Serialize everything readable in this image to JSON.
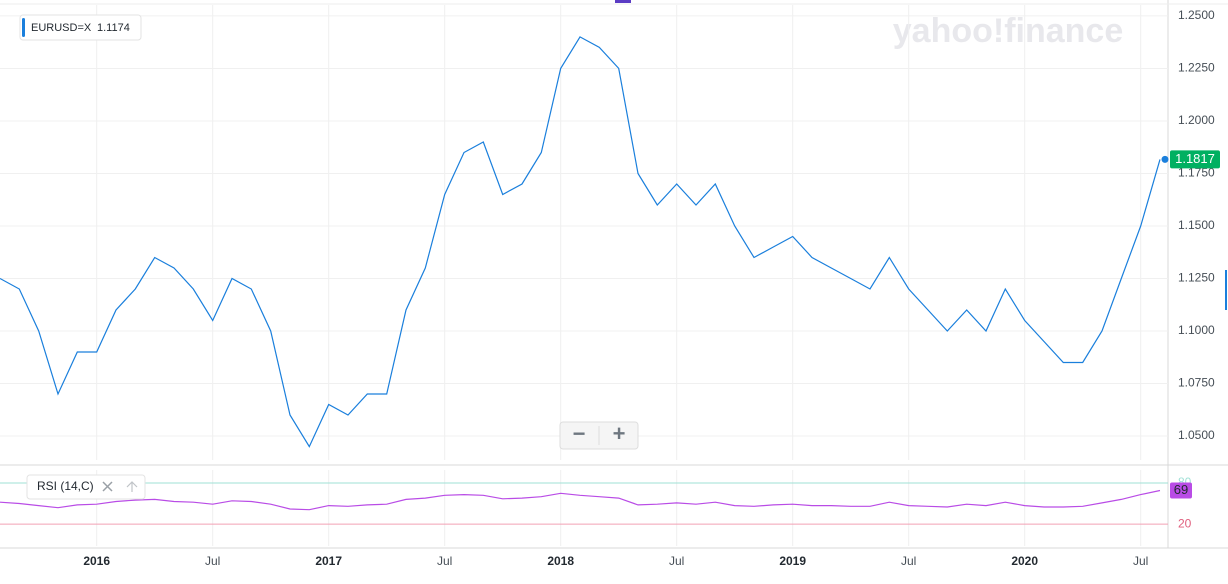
{
  "chart_data": {
    "type": "line",
    "brand": "yahoo!finance",
    "zoom_out": "−",
    "zoom_in": "+",
    "legend_value": 1.1174,
    "x": [
      "2015-08",
      "2015-09",
      "2015-10",
      "2015-11",
      "2015-12",
      "2016-01",
      "2016-02",
      "2016-03",
      "2016-04",
      "2016-05",
      "2016-06",
      "2016-07",
      "2016-08",
      "2016-09",
      "2016-10",
      "2016-11",
      "2016-12",
      "2017-01",
      "2017-02",
      "2017-03",
      "2017-04",
      "2017-05",
      "2017-06",
      "2017-07",
      "2017-08",
      "2017-09",
      "2017-10",
      "2017-11",
      "2017-12",
      "2018-01",
      "2018-02",
      "2018-03",
      "2018-04",
      "2018-05",
      "2018-06",
      "2018-07",
      "2018-08",
      "2018-09",
      "2018-10",
      "2018-11",
      "2018-12",
      "2019-01",
      "2019-02",
      "2019-03",
      "2019-04",
      "2019-05",
      "2019-06",
      "2019-07",
      "2019-08",
      "2019-09",
      "2019-10",
      "2019-11",
      "2019-12",
      "2020-01",
      "2020-02",
      "2020-03",
      "2020-04",
      "2020-05",
      "2020-06",
      "2020-07",
      "2020-08"
    ],
    "series": [
      {
        "name": "EURUSD=X",
        "color": "#1a7fdc",
        "values": [
          1.125,
          1.12,
          1.1,
          1.07,
          1.09,
          1.09,
          1.11,
          1.12,
          1.135,
          1.13,
          1.12,
          1.105,
          1.125,
          1.12,
          1.1,
          1.06,
          1.045,
          1.065,
          1.06,
          1.07,
          1.07,
          1.11,
          1.13,
          1.165,
          1.185,
          1.19,
          1.165,
          1.17,
          1.185,
          1.225,
          1.24,
          1.235,
          1.225,
          1.175,
          1.16,
          1.17,
          1.16,
          1.17,
          1.15,
          1.135,
          1.14,
          1.145,
          1.135,
          1.13,
          1.125,
          1.12,
          1.135,
          1.12,
          1.11,
          1.1,
          1.11,
          1.1,
          1.12,
          1.105,
          1.095,
          1.085,
          1.085,
          1.1,
          1.125,
          1.15,
          1.1817
        ]
      },
      {
        "name": "RSI (14,C)",
        "color": "#b94ce6",
        "axis": "y2",
        "values": [
          52,
          50,
          47,
          44,
          48,
          49,
          53,
          55,
          56,
          53,
          52,
          49,
          54,
          53,
          49,
          42,
          41,
          47,
          46,
          48,
          49,
          56,
          58,
          62,
          63,
          62,
          57,
          58,
          60,
          65,
          62,
          60,
          58,
          48,
          49,
          51,
          49,
          52,
          47,
          46,
          48,
          49,
          47,
          47,
          46,
          46,
          52,
          47,
          46,
          45,
          49,
          47,
          52,
          47,
          45,
          45,
          46,
          51,
          56,
          63,
          69
        ]
      }
    ],
    "xlim": [
      "2015-08",
      "2020-08"
    ],
    "xticks": [
      {
        "value": "2016-01",
        "label": "2016"
      },
      {
        "value": "2016-07",
        "label": "Jul"
      },
      {
        "value": "2017-01",
        "label": "2017"
      },
      {
        "value": "2017-07",
        "label": "Jul"
      },
      {
        "value": "2018-01",
        "label": "2018"
      },
      {
        "value": "2018-07",
        "label": "Jul"
      },
      {
        "value": "2019-01",
        "label": "2019"
      },
      {
        "value": "2019-07",
        "label": "Jul"
      },
      {
        "value": "2020-01",
        "label": "2020"
      },
      {
        "value": "2020-07",
        "label": "Jul"
      }
    ],
    "ylim": [
      1.0386,
      1.2552
    ],
    "yticks": [
      {
        "value": 1.05,
        "label": "1.0500"
      },
      {
        "value": 1.075,
        "label": "1.0750"
      },
      {
        "value": 1.1,
        "label": "1.1000"
      },
      {
        "value": 1.125,
        "label": "1.1250"
      },
      {
        "value": 1.15,
        "label": "1.1500"
      },
      {
        "value": 1.175,
        "label": "1.1750"
      },
      {
        "value": 1.2,
        "label": "1.2000"
      },
      {
        "value": 1.225,
        "label": "1.2250"
      },
      {
        "value": 1.25,
        "label": "1.2500"
      }
    ],
    "y2lim": [
      -12,
      99
    ],
    "y2ticks": [
      20,
      80
    ],
    "grid": true
  }
}
